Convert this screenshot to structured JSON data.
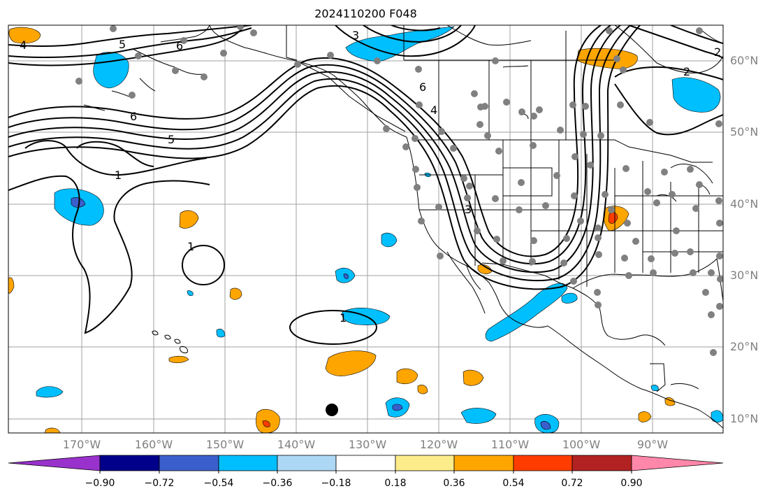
{
  "title": "2024110200 F048",
  "lat_labels": [
    "60°N",
    "50°N",
    "40°N",
    "30°N",
    "20°N",
    "10°N"
  ],
  "lon_labels": [
    "170°W",
    "160°W",
    "150°W",
    "140°W",
    "130°W",
    "120°W",
    "110°W",
    "100°W",
    "90°W"
  ],
  "contour_labels": [
    "4",
    "5",
    "6",
    "6",
    "5",
    "1",
    "1",
    "1",
    "6",
    "4",
    "3",
    "2",
    "2",
    "3"
  ],
  "colorbar": {
    "tick_labels": [
      "−0.90",
      "−0.72",
      "−0.54",
      "−0.36",
      "−0.18",
      "0.18",
      "0.36",
      "0.54",
      "0.72",
      "0.90"
    ],
    "colors": [
      "#9932cc",
      "#00008b",
      "#3a5fcd",
      "#00bfff",
      "#add8f5",
      "#ffffff",
      "#fcec8a",
      "#ffa500",
      "#ff3c00",
      "#b22222",
      "#ff87aa"
    ]
  },
  "colors": {
    "grid": "#a0a0a0",
    "station": "#808080",
    "contour": "#000000",
    "positive": "#ffa500",
    "negative": "#00bfff"
  },
  "marker": "black-dot"
}
